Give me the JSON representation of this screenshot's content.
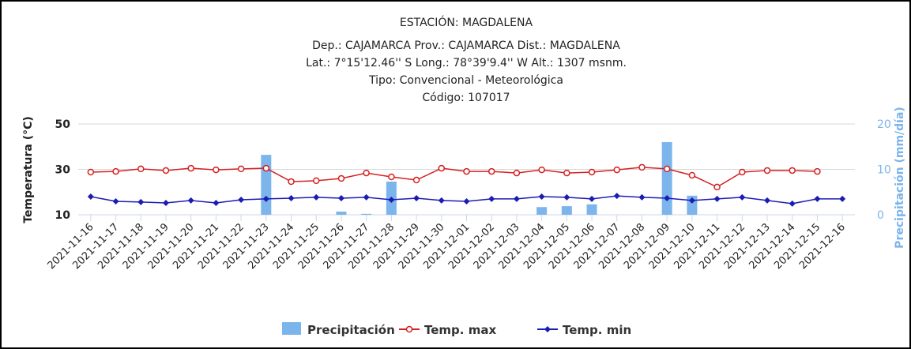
{
  "chart_data": {
    "type": "combo",
    "title": "ESTACIÓN: MAGDALENA",
    "subtitle": [
      "Dep.: CAJAMARCA Prov.: CAJAMARCA Dist.: MAGDALENA",
      "Lat.: 7°15'12.46'' S Long.: 78°39'9.4'' W Alt.: 1307 msnm.",
      "Tipo: Convencional - Meteorológica",
      "Código: 107017"
    ],
    "y_label": "Temperatura (°C)",
    "y2_label": "Precipitación (mm/día)",
    "categories": [
      "2021-11-16",
      "2021-11-17",
      "2021-11-18",
      "2021-11-19",
      "2021-11-20",
      "2021-11-21",
      "2021-11-22",
      "2021-11-23",
      "2021-11-24",
      "2021-11-25",
      "2021-11-26",
      "2021-11-27",
      "2021-11-28",
      "2021-11-29",
      "2021-11-30",
      "2021-12-01",
      "2021-12-02",
      "2021-12-03",
      "2021-12-04",
      "2021-12-05",
      "2021-12-06",
      "2021-12-07",
      "2021-12-08",
      "2021-12-09",
      "2021-12-10",
      "2021-12-11",
      "2021-12-12",
      "2021-12-13",
      "2021-12-14",
      "2021-12-15",
      "2021-12-16"
    ],
    "ylim": [
      10,
      50
    ],
    "yticks": [
      10,
      30,
      50
    ],
    "y2lim": [
      0,
      20
    ],
    "y2ticks": [
      0,
      10,
      20
    ],
    "grid": true,
    "series": [
      {
        "name": "Precipitación",
        "kind": "bar",
        "axis": "y2",
        "color": "#7cb5ec",
        "values": [
          0,
          0,
          0,
          0,
          0,
          0,
          0,
          13.2,
          0,
          0,
          0.7,
          0.2,
          7.3,
          0,
          0,
          0,
          0,
          0,
          1.7,
          1.9,
          2.3,
          0,
          0,
          16,
          4.2,
          0,
          0,
          0,
          0,
          0,
          0
        ]
      },
      {
        "name": "Temp. max",
        "kind": "line",
        "color": "#d62020",
        "values": [
          28.8,
          29.1,
          30.2,
          29.5,
          30.5,
          29.8,
          30.2,
          30.5,
          24.6,
          25,
          26,
          28.4,
          26.7,
          25.3,
          30.5,
          29.1,
          29.1,
          28.4,
          29.8,
          28.4,
          28.8,
          29.8,
          30.9,
          30.2,
          27.4,
          22.2,
          28.8,
          29.5,
          29.5,
          29.1,
          null
        ]
      },
      {
        "name": "Temp. min",
        "kind": "line",
        "color": "#1c1cb4",
        "values": [
          18,
          15.9,
          15.6,
          15.2,
          16.3,
          15.2,
          16.6,
          17,
          17.3,
          17.7,
          17.3,
          17.7,
          16.6,
          17.3,
          16.3,
          15.9,
          17,
          17,
          18,
          17.7,
          17,
          18.3,
          17.7,
          17.3,
          16.3,
          17,
          17.7,
          16.3,
          14.9,
          17,
          17
        ]
      }
    ]
  }
}
